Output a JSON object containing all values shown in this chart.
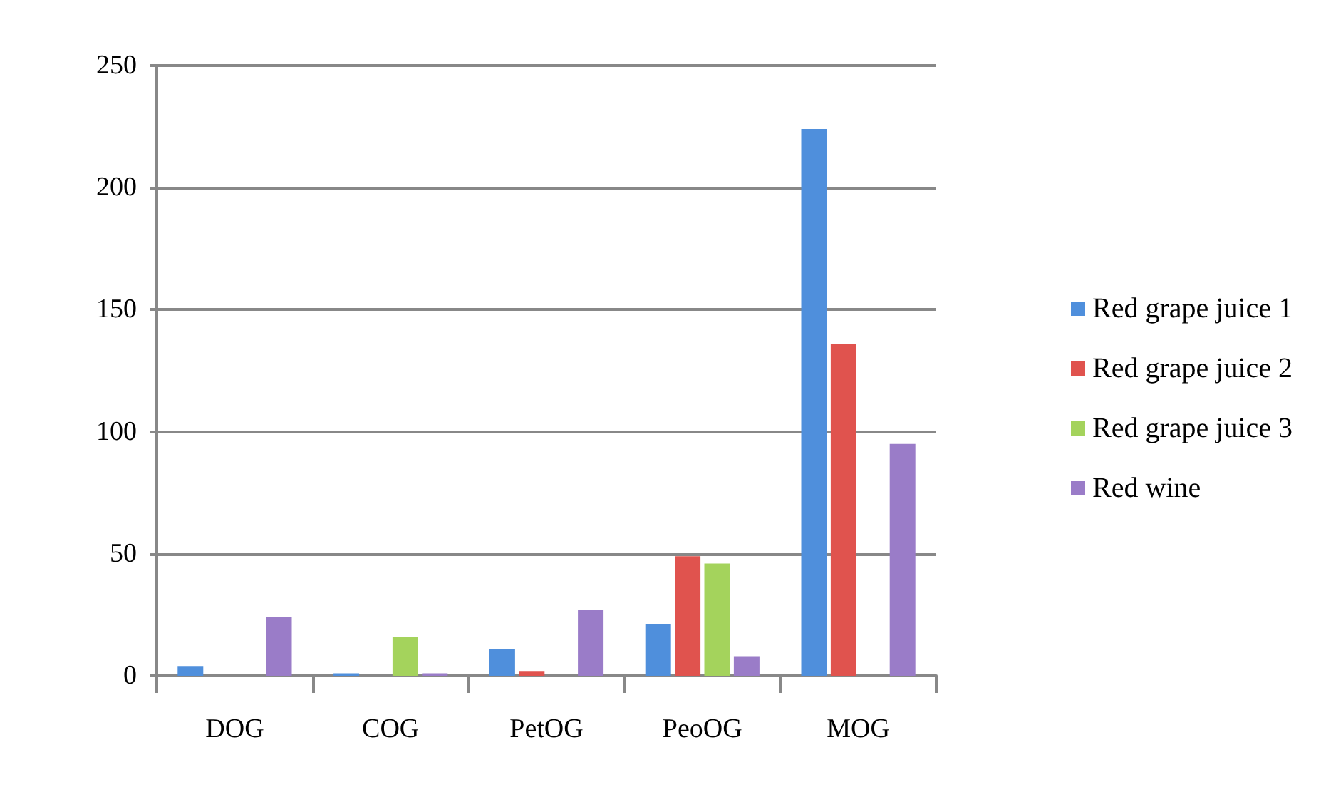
{
  "chart_data": {
    "type": "bar",
    "categories": [
      "DOG",
      "COG",
      "PetOG",
      "PeoOG",
      "MOG"
    ],
    "series": [
      {
        "name": "Red grape juice 1",
        "color": "#4f8fdc",
        "values": [
          4,
          1,
          11,
          21,
          224
        ]
      },
      {
        "name": "Red grape juice 2",
        "color": "#e0534e",
        "values": [
          0,
          0,
          2,
          49,
          136
        ]
      },
      {
        "name": "Red grape juice 3",
        "color": "#a4d35c",
        "values": [
          0,
          16,
          0,
          46,
          0
        ]
      },
      {
        "name": "Red wine",
        "color": "#9a7cc8",
        "values": [
          24,
          1,
          27,
          8,
          95
        ]
      }
    ],
    "ylim": [
      0,
      250
    ],
    "yticks": [
      0,
      50,
      100,
      150,
      200,
      250
    ],
    "grid": "y",
    "legend": "right"
  }
}
